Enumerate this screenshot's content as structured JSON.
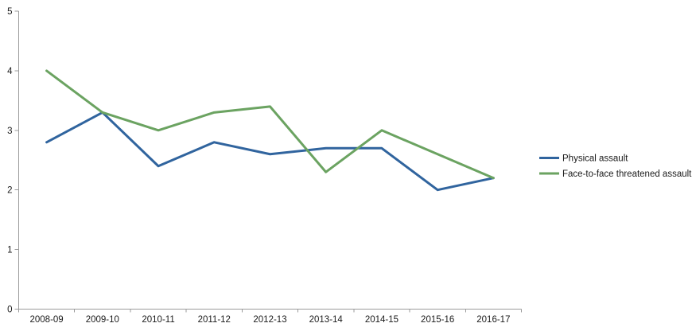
{
  "chart_data": {
    "type": "line",
    "title": "",
    "xlabel": "",
    "ylabel": "",
    "categories": [
      "2008-09",
      "2009-10",
      "2010-11",
      "2011-12",
      "2012-13",
      "2013-14",
      "2014-15",
      "2015-16",
      "2016-17"
    ],
    "series": [
      {
        "name": "Physical assault",
        "color": "#30649e",
        "values": [
          2.8,
          3.3,
          2.4,
          2.8,
          2.6,
          2.7,
          2.7,
          2.0,
          2.2
        ]
      },
      {
        "name": "Face-to-face threatened assault",
        "color": "#6ba361",
        "values": [
          4.0,
          3.3,
          3.0,
          3.3,
          3.4,
          2.3,
          3.0,
          2.6,
          2.2
        ]
      }
    ],
    "ylim": [
      0,
      5
    ],
    "yticks": [
      0,
      1,
      2,
      3,
      4,
      5
    ],
    "grid": false,
    "legend_position": "right",
    "axis_color": "#9b9b9b",
    "label_color": "#1a1a1a"
  }
}
